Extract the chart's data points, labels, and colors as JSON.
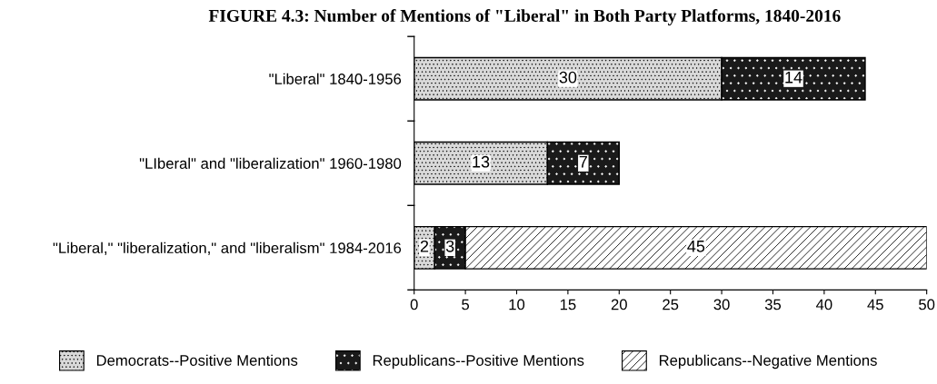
{
  "chart_data": {
    "type": "bar",
    "orientation": "horizontal",
    "stacked": true,
    "title": "FIGURE 4.3: Number of Mentions of \"Liberal\" in Both Party Platforms, 1840-2016",
    "categories": [
      "\"Liberal\" 1840-1956",
      "\"LIberal\" and \"liberalization\" 1960-1980",
      "\"Liberal,\" \"liberalization,\" and \"liberalism\" 1984-2016"
    ],
    "series": [
      {
        "name": "Democrats--Positive Mentions",
        "color": "#d9d9d9",
        "values": [
          30,
          13,
          2
        ]
      },
      {
        "name": "Republicans--Positive Mentions",
        "color": "#1a1a1a",
        "values": [
          14,
          7,
          3
        ]
      },
      {
        "name": "Republicans--Negative Mentions",
        "color": "#ffffff",
        "values": [
          null,
          null,
          45
        ]
      }
    ],
    "xlim": [
      0,
      50
    ],
    "xticks": [
      0,
      5,
      10,
      15,
      20,
      25,
      30,
      35,
      40,
      45,
      50
    ],
    "data_labels": true,
    "legend": "bottom",
    "grid": false
  }
}
